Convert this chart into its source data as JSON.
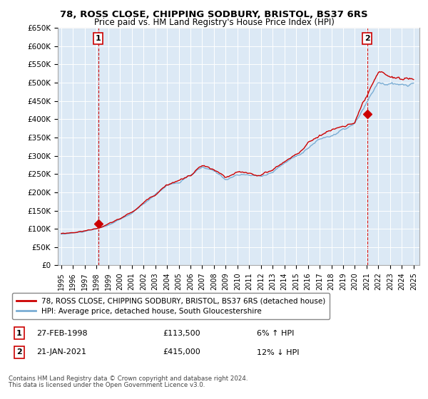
{
  "title": "78, ROSS CLOSE, CHIPPING SODBURY, BRISTOL, BS37 6RS",
  "subtitle": "Price paid vs. HM Land Registry's House Price Index (HPI)",
  "legend_line1": "78, ROSS CLOSE, CHIPPING SODBURY, BRISTOL, BS37 6RS (detached house)",
  "legend_line2": "HPI: Average price, detached house, South Gloucestershire",
  "label1_date": "27-FEB-1998",
  "label1_price": "£113,500",
  "label1_hpi": "6% ↑ HPI",
  "label2_date": "21-JAN-2021",
  "label2_price": "£415,000",
  "label2_hpi": "12% ↓ HPI",
  "footnote1": "Contains HM Land Registry data © Crown copyright and database right 2024.",
  "footnote2": "This data is licensed under the Open Government Licence v3.0.",
  "ylim": [
    0,
    650000
  ],
  "yticks": [
    0,
    50000,
    100000,
    150000,
    200000,
    250000,
    300000,
    350000,
    400000,
    450000,
    500000,
    550000,
    600000,
    650000
  ],
  "ytick_labels": [
    "£0",
    "£50K",
    "£100K",
    "£150K",
    "£200K",
    "£250K",
    "£300K",
    "£350K",
    "£400K",
    "£450K",
    "£500K",
    "£550K",
    "£600K",
    "£650K"
  ],
  "background_color": "#ffffff",
  "plot_bg_color": "#dce9f5",
  "grid_color": "#ffffff",
  "red_color": "#cc0000",
  "blue_color": "#7aadd4",
  "point1_x": 1998.15,
  "point1_y": 113500,
  "point2_x": 2021.05,
  "point2_y": 415000,
  "xlim_left": 1994.7,
  "xlim_right": 2025.5,
  "xticks": [
    1995,
    1996,
    1997,
    1998,
    1999,
    2000,
    2001,
    2002,
    2003,
    2004,
    2005,
    2006,
    2007,
    2008,
    2009,
    2010,
    2011,
    2012,
    2013,
    2014,
    2015,
    2016,
    2017,
    2018,
    2019,
    2020,
    2021,
    2022,
    2023,
    2024,
    2025
  ]
}
